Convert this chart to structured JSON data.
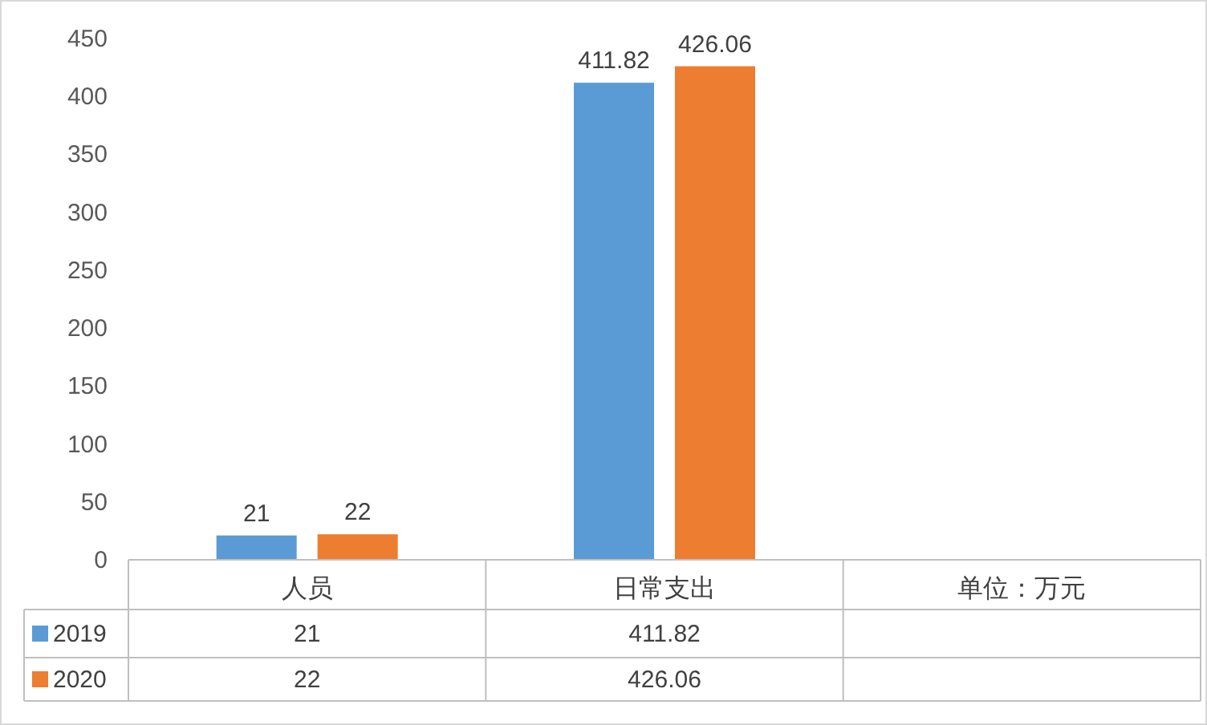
{
  "chart_data": {
    "type": "bar",
    "categories": [
      "人员",
      "日常支出",
      "单位：万元"
    ],
    "series": [
      {
        "name": "2019",
        "color": "#5b9bd5",
        "values": [
          21,
          411.82,
          null
        ]
      },
      {
        "name": "2020",
        "color": "#ed7d31",
        "values": [
          22,
          426.06,
          null
        ]
      }
    ],
    "ylim": [
      0,
      450
    ],
    "yticks": [
      0,
      50,
      100,
      150,
      200,
      250,
      300,
      350,
      400,
      450
    ],
    "data_labels": true,
    "annotations": [
      "21",
      "411.82",
      "22",
      "426.06"
    ],
    "legend": "bottom",
    "grid": false
  }
}
